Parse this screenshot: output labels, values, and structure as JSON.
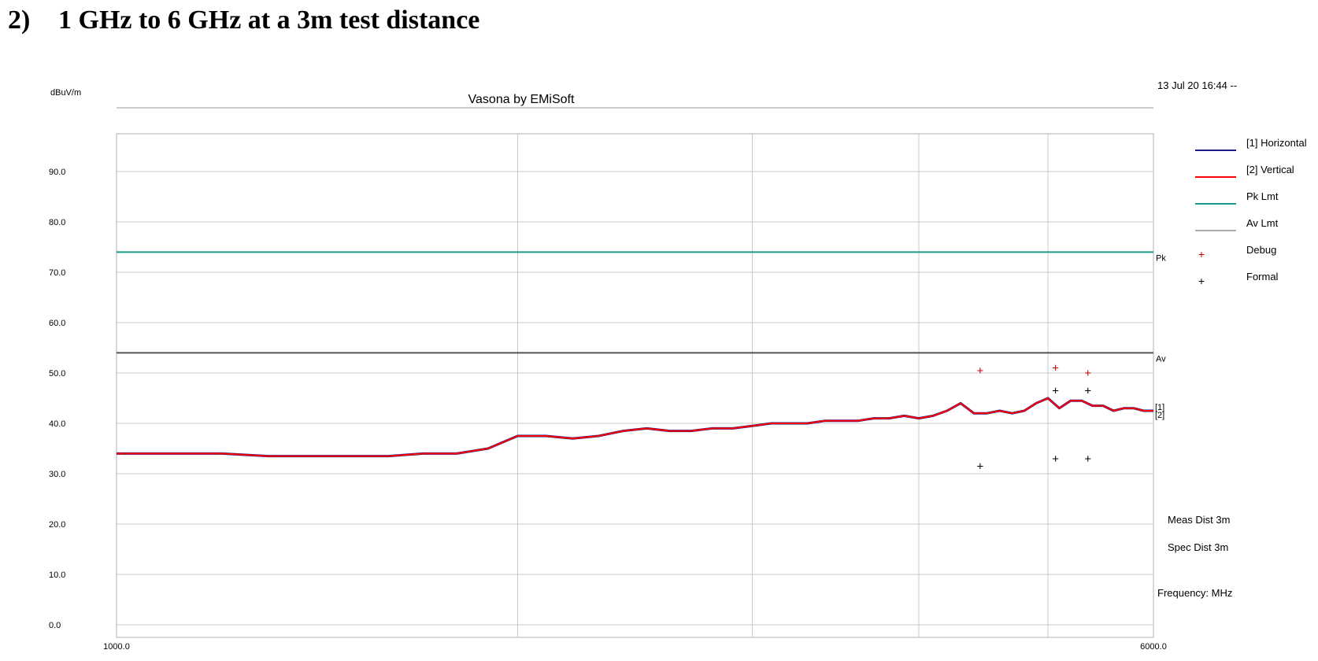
{
  "heading": {
    "number": "2)",
    "text": "1 GHz to 6 GHz at a 3m test distance"
  },
  "chart_data": {
    "type": "line",
    "title": "Vasona by EMiSoft",
    "timestamp": "13 Jul 20 16:44 --",
    "ylabel": "dBuV/m",
    "xlabel": "Frequency: MHz",
    "x_scale": "log",
    "xlim": [
      1000,
      6000
    ],
    "ylim": [
      -2.5,
      97.5
    ],
    "x_tick_labels": [
      {
        "value": 1000,
        "label": "1000.0"
      },
      {
        "value": 6000,
        "label": "6000.0"
      }
    ],
    "x_gridlines": [
      2000,
      3000,
      4000,
      5000
    ],
    "y_ticks": [
      0,
      10,
      20,
      30,
      40,
      50,
      60,
      70,
      80,
      90
    ],
    "y_tick_labels": [
      "0.0",
      "10.0",
      "20.0",
      "30.0",
      "40.0",
      "50.0",
      "60.0",
      "70.0",
      "80.0",
      "90.0"
    ],
    "grid": true,
    "legend_position": "right",
    "legend": [
      {
        "label": "[1] Horizontal",
        "kind": "line",
        "color": "#1a1a8c"
      },
      {
        "label": "[2] Vertical",
        "kind": "line",
        "color": "#ff0000"
      },
      {
        "label": "Pk Lmt",
        "kind": "line",
        "color": "#1a9a8a"
      },
      {
        "label": "Av Lmt",
        "kind": "line",
        "color": "#555555"
      },
      {
        "label": "Debug",
        "kind": "marker",
        "color": "#cc0000"
      },
      {
        "label": "Formal",
        "kind": "marker",
        "color": "#000000"
      }
    ],
    "limits": [
      {
        "label": "Pk",
        "y": 74.0,
        "color": "#1a9a8a"
      },
      {
        "label": "Av",
        "y": 54.0,
        "color": "#555555"
      }
    ],
    "trace_end_labels": [
      "[1]",
      "[2]"
    ],
    "series": [
      {
        "name": "[1] Horizontal",
        "color": "#1a1a8c",
        "x": [
          1000,
          1100,
          1200,
          1300,
          1400,
          1500,
          1600,
          1700,
          1800,
          1900,
          2000,
          2100,
          2200,
          2300,
          2400,
          2500,
          2600,
          2700,
          2800,
          2900,
          3000,
          3100,
          3200,
          3300,
          3400,
          3500,
          3600,
          3700,
          3800,
          3900,
          4000,
          4100,
          4200,
          4300,
          4400,
          4500,
          4600,
          4700,
          4800,
          4900,
          5000,
          5100,
          5200,
          5300,
          5400,
          5500,
          5600,
          5700,
          5800,
          5900,
          6000
        ],
        "y": [
          34.0,
          34.0,
          34.0,
          33.5,
          33.5,
          33.5,
          33.5,
          34.0,
          34.0,
          35.0,
          37.5,
          37.5,
          37.0,
          37.5,
          38.5,
          39.0,
          38.5,
          38.5,
          39.0,
          39.0,
          39.5,
          40.0,
          40.0,
          40.0,
          40.5,
          40.5,
          40.5,
          41.0,
          41.0,
          41.5,
          41.0,
          41.5,
          42.5,
          44.0,
          42.0,
          42.0,
          42.5,
          42.0,
          42.5,
          44.0,
          45.0,
          43.0,
          44.5,
          44.5,
          43.5,
          43.5,
          42.5,
          43.0,
          43.0,
          42.5,
          42.5
        ]
      },
      {
        "name": "[2] Vertical",
        "color": "#ff0000",
        "x": [
          1000,
          1100,
          1200,
          1300,
          1400,
          1500,
          1600,
          1700,
          1800,
          1900,
          2000,
          2100,
          2200,
          2300,
          2400,
          2500,
          2600,
          2700,
          2800,
          2900,
          3000,
          3100,
          3200,
          3300,
          3400,
          3500,
          3600,
          3700,
          3800,
          3900,
          4000,
          4100,
          4200,
          4300,
          4400,
          4500,
          4600,
          4700,
          4800,
          4900,
          5000,
          5100,
          5200,
          5300,
          5400,
          5500,
          5600,
          5700,
          5800,
          5900,
          6000
        ],
        "y": [
          34.0,
          34.0,
          34.0,
          33.5,
          33.5,
          33.5,
          33.5,
          34.0,
          34.0,
          35.0,
          37.5,
          37.5,
          37.0,
          37.5,
          38.5,
          39.0,
          38.5,
          38.5,
          39.0,
          39.0,
          39.5,
          40.0,
          40.0,
          40.0,
          40.5,
          40.5,
          40.5,
          41.0,
          41.0,
          41.5,
          41.0,
          41.5,
          42.5,
          44.0,
          42.0,
          42.0,
          42.5,
          42.0,
          42.5,
          44.0,
          45.0,
          43.0,
          44.5,
          44.5,
          43.5,
          43.5,
          42.5,
          43.0,
          43.0,
          42.5,
          42.5
        ]
      }
    ],
    "markers": [
      {
        "name": "Debug",
        "color": "#cc0000",
        "points": [
          [
            4447,
            50.5
          ],
          [
            5066,
            51.0
          ],
          [
            5358,
            50.0
          ]
        ]
      },
      {
        "name": "Formal",
        "color": "#000000",
        "points": [
          [
            4447,
            31.5
          ],
          [
            5066,
            33.0
          ],
          [
            5358,
            33.0
          ],
          [
            5066,
            46.5
          ],
          [
            5358,
            46.5
          ]
        ]
      }
    ],
    "notes": [
      "Meas Dist 3m",
      "Spec Dist 3m"
    ]
  }
}
